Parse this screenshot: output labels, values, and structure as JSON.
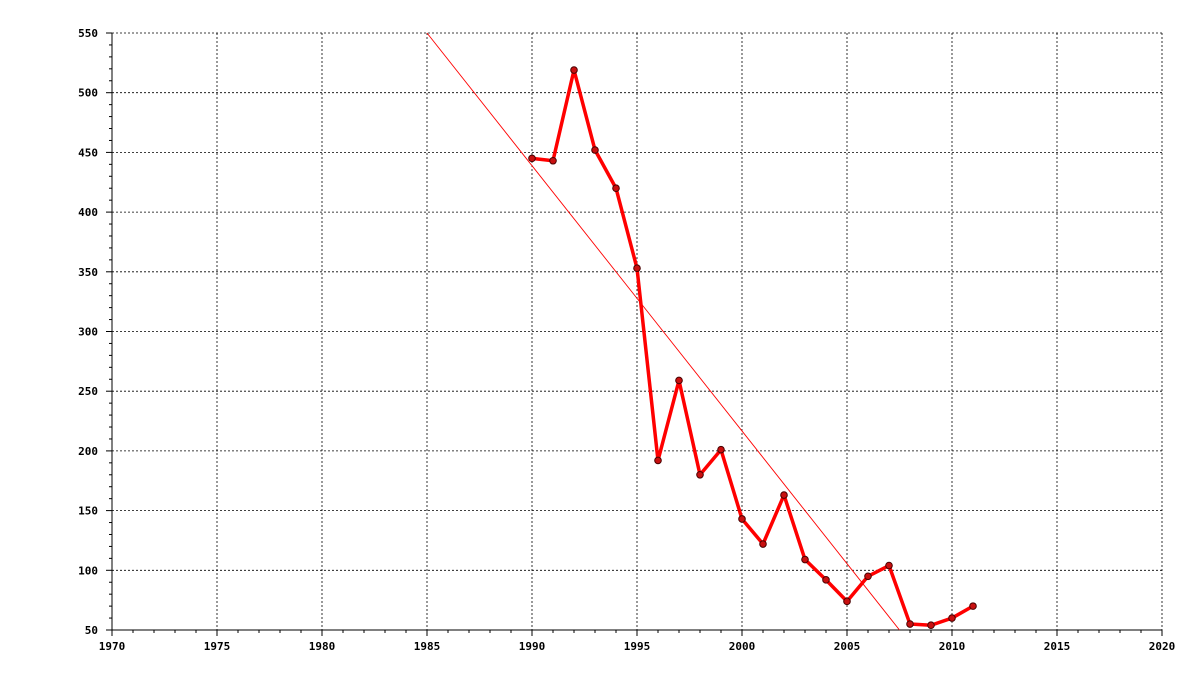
{
  "chart_data": {
    "type": "line",
    "title": "",
    "xlabel": "",
    "ylabel": "",
    "xlim": [
      1970,
      2020
    ],
    "ylim": [
      50,
      550
    ],
    "x_ticks": [
      "1970",
      "1975",
      "1980",
      "1985",
      "1990",
      "1995",
      "2000",
      "2005",
      "2010",
      "2015",
      "2020"
    ],
    "y_ticks": [
      "50",
      "100",
      "150",
      "200",
      "250",
      "300",
      "350",
      "400",
      "450",
      "500",
      "550"
    ],
    "grid": true,
    "series": [
      {
        "color": "#ff0000",
        "marker": "circle",
        "x": [
          1990,
          1991,
          1992,
          1993,
          1994,
          1995,
          1996,
          1997,
          1998,
          1999,
          2000,
          2001,
          2002,
          2003,
          2004,
          2005,
          2006,
          2007,
          2008,
          2009,
          2010,
          2011
        ],
        "y": [
          445,
          443,
          519,
          452,
          420,
          353,
          192,
          259,
          180,
          201,
          143,
          122,
          163,
          109,
          92,
          74,
          95,
          104,
          55,
          54,
          60,
          70
        ]
      }
    ],
    "trendline": {
      "color": "#ff0000",
      "x": [
        1985,
        2007.5
      ],
      "y": [
        550,
        50
      ]
    }
  }
}
